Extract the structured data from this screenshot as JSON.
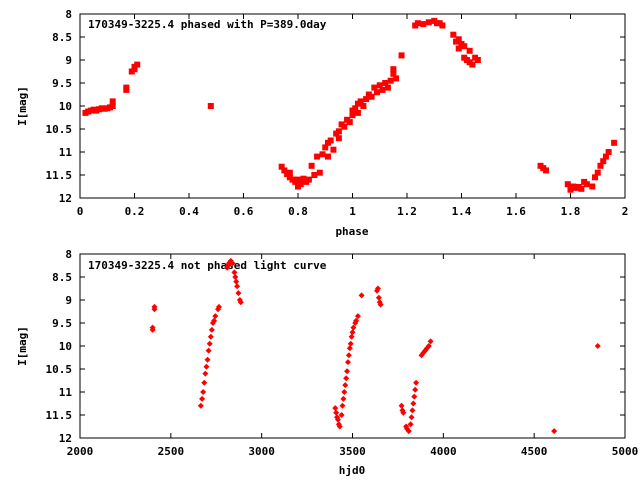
{
  "chart_data": [
    {
      "type": "scatter",
      "title": "170349-3225.4 phased with P=389.0day",
      "xlabel": "phase",
      "ylabel": "I[mag]",
      "xlim": [
        0,
        2
      ],
      "ylim": [
        12,
        8
      ],
      "y_inverted": true,
      "xticks": [
        0,
        0.2,
        0.4,
        0.6,
        0.8,
        1,
        1.2,
        1.4,
        1.6,
        1.8,
        2
      ],
      "yticks": [
        8,
        8.5,
        9,
        9.5,
        10,
        10.5,
        11,
        11.5,
        12
      ],
      "xtick_labels": [
        "0",
        "0.2",
        "0.4",
        "0.6",
        "0.8",
        "1",
        "1.2",
        "1.4",
        "1.6",
        "1.8",
        "2"
      ],
      "ytick_labels": [
        "8",
        "8.5",
        "9",
        "9.5",
        "10",
        "10.5",
        "11",
        "11.5",
        "12"
      ],
      "grid": false,
      "legend": "none",
      "marker_color": "#ff0000",
      "marker": "filled-square",
      "points": [
        [
          0.02,
          10.15
        ],
        [
          0.03,
          10.12
        ],
        [
          0.04,
          10.1
        ],
        [
          0.05,
          10.08
        ],
        [
          0.06,
          10.1
        ],
        [
          0.07,
          10.07
        ],
        [
          0.08,
          10.05
        ],
        [
          0.09,
          10.06
        ],
        [
          0.1,
          10.05
        ],
        [
          0.11,
          10.03
        ],
        [
          0.12,
          10.0
        ],
        [
          0.12,
          9.9
        ],
        [
          0.17,
          9.65
        ],
        [
          0.17,
          9.6
        ],
        [
          0.19,
          9.25
        ],
        [
          0.2,
          9.2
        ],
        [
          0.2,
          9.15
        ],
        [
          0.21,
          9.1
        ],
        [
          0.48,
          10.0
        ],
        [
          0.74,
          11.32
        ],
        [
          0.75,
          11.4
        ],
        [
          0.76,
          11.48
        ],
        [
          0.77,
          11.55
        ],
        [
          0.77,
          11.45
        ],
        [
          0.78,
          11.6
        ],
        [
          0.79,
          11.65
        ],
        [
          0.8,
          11.75
        ],
        [
          0.8,
          11.6
        ],
        [
          0.81,
          11.7
        ],
        [
          0.82,
          11.58
        ],
        [
          0.83,
          11.65
        ],
        [
          0.84,
          11.6
        ],
        [
          0.85,
          11.3
        ],
        [
          0.86,
          11.5
        ],
        [
          0.87,
          11.1
        ],
        [
          0.88,
          11.45
        ],
        [
          0.89,
          11.05
        ],
        [
          0.9,
          10.9
        ],
        [
          0.91,
          11.1
        ],
        [
          0.91,
          10.8
        ],
        [
          0.92,
          10.75
        ],
        [
          0.93,
          10.95
        ],
        [
          0.94,
          10.6
        ],
        [
          0.95,
          10.55
        ],
        [
          0.95,
          10.7
        ],
        [
          0.96,
          10.4
        ],
        [
          0.97,
          10.45
        ],
        [
          0.98,
          10.3
        ],
        [
          0.99,
          10.35
        ],
        [
          1.0,
          10.1
        ],
        [
          1.0,
          10.2
        ],
        [
          1.01,
          10.05
        ],
        [
          1.02,
          9.95
        ],
        [
          1.02,
          10.15
        ],
        [
          1.03,
          9.9
        ],
        [
          1.04,
          10.0
        ],
        [
          1.05,
          9.85
        ],
        [
          1.06,
          9.75
        ],
        [
          1.07,
          9.8
        ],
        [
          1.08,
          9.6
        ],
        [
          1.09,
          9.7
        ],
        [
          1.1,
          9.55
        ],
        [
          1.11,
          9.65
        ],
        [
          1.12,
          9.5
        ],
        [
          1.13,
          9.6
        ],
        [
          1.14,
          9.45
        ],
        [
          1.15,
          9.2
        ],
        [
          1.15,
          9.3
        ],
        [
          1.16,
          9.4
        ],
        [
          1.18,
          8.9
        ],
        [
          1.23,
          8.25
        ],
        [
          1.24,
          8.2
        ],
        [
          1.26,
          8.22
        ],
        [
          1.28,
          8.18
        ],
        [
          1.3,
          8.15
        ],
        [
          1.31,
          8.2
        ],
        [
          1.32,
          8.2
        ],
        [
          1.33,
          8.25
        ],
        [
          1.37,
          8.45
        ],
        [
          1.38,
          8.6
        ],
        [
          1.39,
          8.55
        ],
        [
          1.39,
          8.75
        ],
        [
          1.4,
          8.65
        ],
        [
          1.41,
          8.7
        ],
        [
          1.41,
          8.95
        ],
        [
          1.42,
          9.0
        ],
        [
          1.43,
          8.8
        ],
        [
          1.43,
          9.05
        ],
        [
          1.44,
          9.1
        ],
        [
          1.45,
          8.95
        ],
        [
          1.46,
          9.0
        ],
        [
          1.69,
          11.3
        ],
        [
          1.7,
          11.35
        ],
        [
          1.71,
          11.4
        ],
        [
          1.79,
          11.7
        ],
        [
          1.8,
          11.82
        ],
        [
          1.81,
          11.75
        ],
        [
          1.82,
          11.78
        ],
        [
          1.83,
          11.76
        ],
        [
          1.84,
          11.8
        ],
        [
          1.85,
          11.65
        ],
        [
          1.86,
          11.7
        ],
        [
          1.88,
          11.75
        ],
        [
          1.89,
          11.55
        ],
        [
          1.9,
          11.45
        ],
        [
          1.91,
          11.3
        ],
        [
          1.92,
          11.2
        ],
        [
          1.93,
          11.1
        ],
        [
          1.94,
          11.0
        ],
        [
          1.96,
          10.8
        ]
      ]
    },
    {
      "type": "scatter",
      "title": "170349-3225.4 not phased light curve",
      "xlabel": "hjd0",
      "ylabel": "I[mag]",
      "xlim": [
        2000,
        5000
      ],
      "ylim": [
        12,
        8
      ],
      "y_inverted": true,
      "xticks": [
        2000,
        2500,
        3000,
        3500,
        4000,
        4500,
        5000
      ],
      "yticks": [
        8,
        8.5,
        9,
        9.5,
        10,
        10.5,
        11,
        11.5,
        12
      ],
      "xtick_labels": [
        "2000",
        "2500",
        "3000",
        "3500",
        "4000",
        "4500",
        "5000"
      ],
      "ytick_labels": [
        "8",
        "8.5",
        "9",
        "9.5",
        "10",
        "10.5",
        "11",
        "11.5",
        "12"
      ],
      "grid": false,
      "legend": "none",
      "marker_color": "#ff0000",
      "marker": "filled-diamond",
      "points": [
        [
          2400,
          9.65
        ],
        [
          2400,
          9.6
        ],
        [
          2410,
          9.2
        ],
        [
          2410,
          9.15
        ],
        [
          2665,
          11.3
        ],
        [
          2672,
          11.15
        ],
        [
          2678,
          11.0
        ],
        [
          2684,
          10.8
        ],
        [
          2690,
          10.6
        ],
        [
          2696,
          10.45
        ],
        [
          2702,
          10.3
        ],
        [
          2708,
          10.1
        ],
        [
          2714,
          9.95
        ],
        [
          2720,
          9.8
        ],
        [
          2726,
          9.65
        ],
        [
          2732,
          9.5
        ],
        [
          2738,
          9.45
        ],
        [
          2745,
          9.35
        ],
        [
          2760,
          9.2
        ],
        [
          2765,
          9.15
        ],
        [
          2810,
          8.3
        ],
        [
          2815,
          8.25
        ],
        [
          2820,
          8.2
        ],
        [
          2825,
          8.2
        ],
        [
          2830,
          8.15
        ],
        [
          2840,
          8.2
        ],
        [
          2850,
          8.4
        ],
        [
          2855,
          8.5
        ],
        [
          2860,
          8.6
        ],
        [
          2865,
          8.7
        ],
        [
          2872,
          8.85
        ],
        [
          2880,
          9.0
        ],
        [
          2885,
          9.05
        ],
        [
          3405,
          11.35
        ],
        [
          3410,
          11.45
        ],
        [
          3415,
          11.55
        ],
        [
          3420,
          11.6
        ],
        [
          3425,
          11.7
        ],
        [
          3430,
          11.75
        ],
        [
          3440,
          11.5
        ],
        [
          3445,
          11.3
        ],
        [
          3450,
          11.15
        ],
        [
          3455,
          11.0
        ],
        [
          3460,
          10.85
        ],
        [
          3465,
          10.7
        ],
        [
          3470,
          10.55
        ],
        [
          3475,
          10.35
        ],
        [
          3480,
          10.2
        ],
        [
          3485,
          10.05
        ],
        [
          3490,
          9.95
        ],
        [
          3495,
          9.8
        ],
        [
          3500,
          9.7
        ],
        [
          3505,
          9.6
        ],
        [
          3515,
          9.5
        ],
        [
          3520,
          9.45
        ],
        [
          3530,
          9.35
        ],
        [
          3550,
          8.9
        ],
        [
          3635,
          8.8
        ],
        [
          3640,
          8.75
        ],
        [
          3645,
          8.95
        ],
        [
          3650,
          9.05
        ],
        [
          3655,
          9.1
        ],
        [
          3770,
          11.3
        ],
        [
          3775,
          11.4
        ],
        [
          3780,
          11.45
        ],
        [
          3795,
          11.75
        ],
        [
          3800,
          11.8
        ],
        [
          3810,
          11.85
        ],
        [
          3820,
          11.7
        ],
        [
          3825,
          11.55
        ],
        [
          3830,
          11.4
        ],
        [
          3835,
          11.25
        ],
        [
          3840,
          11.1
        ],
        [
          3845,
          10.95
        ],
        [
          3850,
          10.8
        ],
        [
          3880,
          10.2
        ],
        [
          3890,
          10.15
        ],
        [
          3900,
          10.1
        ],
        [
          3910,
          10.05
        ],
        [
          3920,
          10.0
        ],
        [
          3930,
          9.9
        ],
        [
          4610,
          11.85
        ],
        [
          4850,
          10.0
        ]
      ]
    }
  ]
}
